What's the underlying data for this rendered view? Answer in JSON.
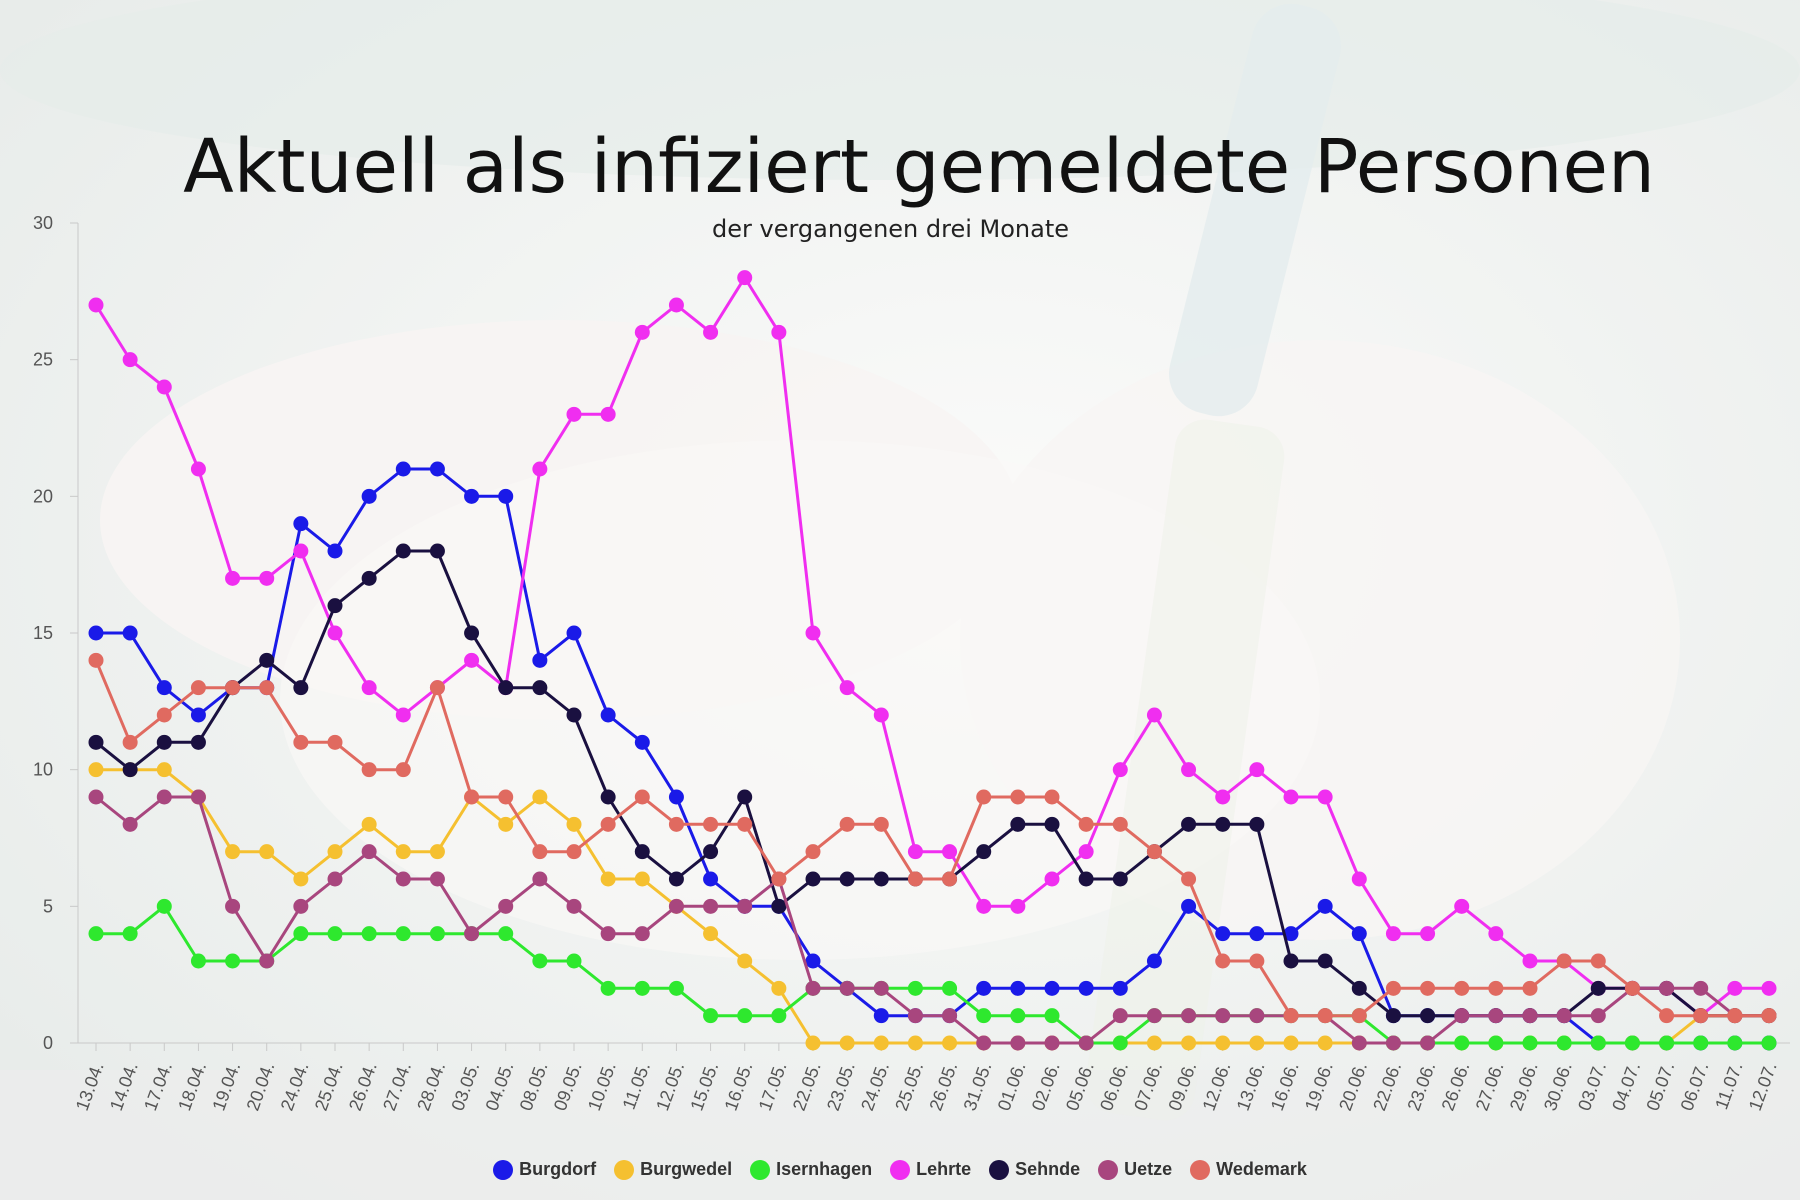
{
  "chart_data": {
    "type": "line",
    "title": "Aktuell als infiziert gemeldete Personen",
    "subtitle": "der vergangenen drei Monate",
    "xlabel": "",
    "ylabel": "",
    "ylim": [
      0,
      30
    ],
    "yticks": [
      0,
      5,
      10,
      15,
      20,
      25,
      30
    ],
    "grid": false,
    "legend_position": "bottom",
    "categories": [
      "13.04.",
      "14.04.",
      "17.04.",
      "18.04.",
      "19.04.",
      "20.04.",
      "24.04.",
      "25.04.",
      "26.04.",
      "27.04.",
      "28.04.",
      "03.05.",
      "04.05.",
      "08.05.",
      "09.05.",
      "10.05.",
      "11.05.",
      "12.05.",
      "15.05.",
      "16.05.",
      "17.05.",
      "22.05.",
      "23.05.",
      "24.05.",
      "25.05.",
      "26.05.",
      "31.05.",
      "01.06.",
      "02.06.",
      "05.06.",
      "06.06.",
      "07.06.",
      "09.06.",
      "12.06.",
      "13.06.",
      "16.06.",
      "19.06.",
      "20.06.",
      "22.06.",
      "23.06.",
      "26.06.",
      "27.06.",
      "29.06.",
      "30.06.",
      "03.07.",
      "04.07.",
      "05.07.",
      "06.07.",
      "11.07.",
      "12.07."
    ],
    "series": [
      {
        "name": "Burgdorf",
        "color": "#1a1ae8",
        "values": [
          15,
          15,
          13,
          12,
          13,
          13,
          19,
          18,
          20,
          21,
          21,
          20,
          20,
          14,
          15,
          12,
          11,
          9,
          6,
          5,
          5,
          3,
          2,
          1,
          1,
          1,
          2,
          2,
          2,
          2,
          2,
          3,
          5,
          4,
          4,
          4,
          5,
          4,
          1,
          1,
          1,
          1,
          1,
          1,
          0,
          0,
          0,
          0,
          0,
          0
        ]
      },
      {
        "name": "Burgwedel",
        "color": "#f5c030",
        "values": [
          10,
          10,
          10,
          9,
          7,
          7,
          6,
          7,
          8,
          7,
          7,
          9,
          8,
          9,
          8,
          6,
          6,
          5,
          4,
          3,
          2,
          0,
          0,
          0,
          0,
          0,
          0,
          0,
          0,
          0,
          0,
          0,
          0,
          0,
          0,
          0,
          0,
          0,
          0,
          0,
          0,
          0,
          0,
          0,
          0,
          0,
          0,
          1,
          1,
          1
        ]
      },
      {
        "name": "Isernhagen",
        "color": "#2ee82e",
        "values": [
          4,
          4,
          5,
          3,
          3,
          3,
          4,
          4,
          4,
          4,
          4,
          4,
          4,
          3,
          3,
          2,
          2,
          2,
          1,
          1,
          1,
          2,
          2,
          2,
          2,
          2,
          1,
          1,
          1,
          0,
          0,
          1,
          1,
          1,
          1,
          1,
          1,
          1,
          0,
          0,
          0,
          0,
          0,
          0,
          0,
          0,
          0,
          0,
          0,
          0
        ]
      },
      {
        "name": "Lehrte",
        "color": "#f02ef0",
        "values": [
          27,
          25,
          24,
          21,
          17,
          17,
          18,
          15,
          13,
          12,
          13,
          14,
          13,
          21,
          23,
          23,
          26,
          27,
          26,
          28,
          26,
          15,
          13,
          12,
          7,
          7,
          5,
          5,
          6,
          7,
          10,
          12,
          10,
          9,
          10,
          9,
          9,
          6,
          4,
          4,
          5,
          4,
          3,
          3,
          2,
          2,
          2,
          1,
          2,
          2
        ]
      },
      {
        "name": "Sehnde",
        "color": "#1a1040",
        "values": [
          11,
          10,
          11,
          11,
          13,
          14,
          13,
          16,
          17,
          18,
          18,
          15,
          13,
          13,
          12,
          9,
          7,
          6,
          7,
          9,
          5,
          6,
          6,
          6,
          6,
          6,
          7,
          8,
          8,
          6,
          6,
          7,
          8,
          8,
          8,
          3,
          3,
          2,
          1,
          1,
          1,
          1,
          1,
          1,
          2,
          2,
          2,
          1,
          1,
          1
        ]
      },
      {
        "name": "Uetze",
        "color": "#a8467e",
        "values": [
          9,
          8,
          9,
          9,
          5,
          3,
          5,
          6,
          7,
          6,
          6,
          4,
          5,
          6,
          5,
          4,
          4,
          5,
          5,
          5,
          6,
          2,
          2,
          2,
          1,
          1,
          0,
          0,
          0,
          0,
          1,
          1,
          1,
          1,
          1,
          1,
          1,
          0,
          0,
          0,
          1,
          1,
          1,
          1,
          1,
          2,
          2,
          2,
          1,
          1
        ]
      },
      {
        "name": "Wedemark",
        "color": "#e06a60",
        "values": [
          14,
          11,
          12,
          13,
          13,
          13,
          11,
          11,
          10,
          10,
          13,
          9,
          9,
          7,
          7,
          8,
          9,
          8,
          8,
          8,
          6,
          7,
          8,
          8,
          6,
          6,
          9,
          9,
          9,
          8,
          8,
          7,
          6,
          3,
          3,
          1,
          1,
          1,
          2,
          2,
          2,
          2,
          2,
          3,
          3,
          2,
          1,
          1,
          1,
          1
        ]
      }
    ]
  }
}
